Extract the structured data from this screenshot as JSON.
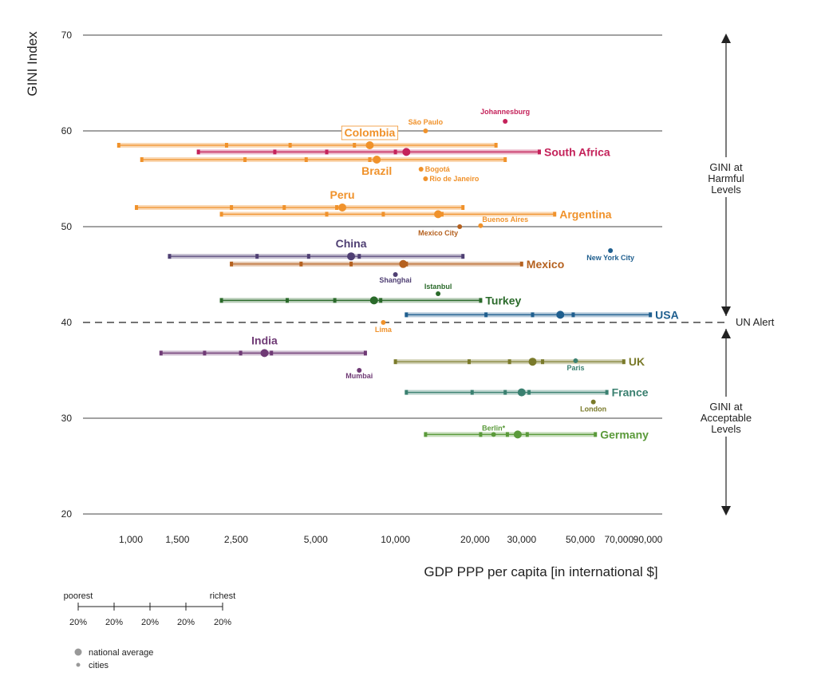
{
  "chart_data": {
    "type": "scatter",
    "ylabel": "GINI Index",
    "xlabel": "GDP PPP per capita [in international $]",
    "x_scale": "log",
    "xlim": [
      700,
      100000
    ],
    "ylim": [
      20,
      70
    ],
    "yticks": [
      20,
      30,
      40,
      50,
      60,
      70
    ],
    "xticks": [
      {
        "value": 1000,
        "label": "1,000"
      },
      {
        "value": 1500,
        "label": "1,500"
      },
      {
        "value": 2500,
        "label": "2,500"
      },
      {
        "value": 5000,
        "label": "5,000"
      },
      {
        "value": 10000,
        "label": "10,000"
      },
      {
        "value": 20000,
        "label": "20,000"
      },
      {
        "value": 30000,
        "label": "30,000"
      },
      {
        "value": 50000,
        "label": "50,000"
      },
      {
        "value": 70000,
        "label": "70,000"
      },
      {
        "value": 90000,
        "label": "90,000"
      }
    ],
    "reference_line": {
      "y": 40,
      "label": "UN Alert"
    },
    "side_annotations": [
      {
        "text": "GINI at\nHarmful\nLevels",
        "from": 70,
        "to": 40
      },
      {
        "text": "GINI at\nAcceptable\nLevels",
        "from": 40,
        "to": 20
      }
    ],
    "countries": [
      {
        "name": "Colombia",
        "color": "#f0922b",
        "gini": 58.5,
        "average": 8000,
        "quintiles": [
          900,
          2300,
          4000,
          7000,
          24000
        ],
        "label_side": "top",
        "boxed": true
      },
      {
        "name": "South Africa",
        "color": "#c4225a",
        "gini": 57.8,
        "average": 11000,
        "quintiles": [
          1800,
          3500,
          5500,
          10000,
          35000
        ],
        "label_side": "right"
      },
      {
        "name": "Brazil",
        "color": "#f0922b",
        "gini": 57.0,
        "average": 8500,
        "quintiles": [
          1100,
          2700,
          4600,
          8000,
          26000
        ],
        "label_side": "bottom"
      },
      {
        "name": "Peru",
        "color": "#f0922b",
        "gini": 52.0,
        "average": 6300,
        "quintiles": [
          1050,
          2400,
          3800,
          6000,
          18000
        ],
        "label_side": "top"
      },
      {
        "name": "Argentina",
        "color": "#f0922b",
        "gini": 51.3,
        "average": 14500,
        "quintiles": [
          2200,
          5500,
          9000,
          15000,
          40000
        ],
        "label_side": "right"
      },
      {
        "name": "China",
        "color": "#4f3f73",
        "gini": 46.9,
        "average": 6800,
        "quintiles": [
          1400,
          3000,
          4700,
          7300,
          18000
        ],
        "label_side": "top"
      },
      {
        "name": "Mexico",
        "color": "#b5611f",
        "gini": 46.1,
        "average": 10700,
        "quintiles": [
          2400,
          4400,
          6800,
          11000,
          30000
        ],
        "label_side": "right"
      },
      {
        "name": "Turkey",
        "color": "#2a6a2a",
        "gini": 42.3,
        "average": 8300,
        "quintiles": [
          2200,
          3900,
          5900,
          8800,
          21000
        ],
        "label_side": "right"
      },
      {
        "name": "USA",
        "color": "#1f5f8f",
        "gini": 40.8,
        "average": 42000,
        "quintiles": [
          11000,
          22000,
          33000,
          47000,
          92000
        ],
        "label_side": "right"
      },
      {
        "name": "India",
        "color": "#6f3a75",
        "gini": 36.8,
        "average": 3200,
        "quintiles": [
          1300,
          1900,
          2600,
          3400,
          7700
        ],
        "label_side": "top"
      },
      {
        "name": "UK",
        "color": "#7a7a2a",
        "gini": 35.9,
        "average": 33000,
        "quintiles": [
          10000,
          19000,
          27000,
          36000,
          73000
        ],
        "label_side": "right"
      },
      {
        "name": "France",
        "color": "#3a8070",
        "gini": 32.7,
        "average": 30000,
        "quintiles": [
          11000,
          19500,
          26000,
          32000,
          63000
        ],
        "label_side": "right"
      },
      {
        "name": "Germany",
        "color": "#5a9a3a",
        "gini": 28.3,
        "average": 29000,
        "quintiles": [
          13000,
          21000,
          26500,
          31500,
          57000
        ],
        "label_side": "right"
      }
    ],
    "cities": [
      {
        "name": "Johannesburg",
        "color": "#c4225a",
        "gini": 61.0,
        "gdp": 26000,
        "label_dx": 0,
        "label_dy": -9,
        "anchor": "middle"
      },
      {
        "name": "São Paulo",
        "color": "#f0922b",
        "gini": 60.0,
        "gdp": 13000,
        "label_dx": 0,
        "label_dy": -8,
        "anchor": "middle"
      },
      {
        "name": "Bogotá",
        "color": "#f0922b",
        "gini": 56.0,
        "gdp": 12500,
        "label_dx": 5,
        "label_dy": 3,
        "anchor": "start"
      },
      {
        "name": "Rio de Janeiro",
        "color": "#f0922b",
        "gini": 55.0,
        "gdp": 13000,
        "label_dx": 5,
        "label_dy": 3,
        "anchor": "start"
      },
      {
        "name": "Buenos Aires",
        "color": "#f0922b",
        "gini": 50.1,
        "gdp": 21000,
        "label_dx": 2,
        "label_dy": -5,
        "anchor": "start"
      },
      {
        "name": "Mexico City",
        "color": "#b5611f",
        "gini": 50.0,
        "gdp": 17500,
        "label_dx": -2,
        "label_dy": 11,
        "anchor": "end"
      },
      {
        "name": "New York City",
        "color": "#1f5f8f",
        "gini": 47.5,
        "gdp": 65000,
        "label_dx": 0,
        "label_dy": 12,
        "anchor": "middle"
      },
      {
        "name": "Shanghai",
        "color": "#4f3f73",
        "gini": 45.0,
        "gdp": 10000,
        "label_dx": 0,
        "label_dy": 10,
        "anchor": "middle"
      },
      {
        "name": "Istanbul",
        "color": "#2a6a2a",
        "gini": 43.0,
        "gdp": 14500,
        "label_dx": 0,
        "label_dy": -6,
        "anchor": "middle"
      },
      {
        "name": "Lima",
        "color": "#f0922b",
        "gini": 40.0,
        "gdp": 9000,
        "label_dx": 0,
        "label_dy": 12,
        "anchor": "middle"
      },
      {
        "name": "Mumbai",
        "color": "#6f3a75",
        "gini": 35.0,
        "gdp": 7300,
        "label_dx": 0,
        "label_dy": 10,
        "anchor": "middle"
      },
      {
        "name": "Paris",
        "color": "#3a8070",
        "gini": 36.0,
        "gdp": 48000,
        "label_dx": 0,
        "label_dy": 12,
        "anchor": "middle"
      },
      {
        "name": "London",
        "color": "#7a7a2a",
        "gini": 31.7,
        "gdp": 56000,
        "label_dx": 0,
        "label_dy": 12,
        "anchor": "middle"
      },
      {
        "name": "Berlin*",
        "color": "#5a9a3a",
        "gini": 28.3,
        "gdp": 23500,
        "label_dx": 0,
        "label_dy": -5,
        "anchor": "middle"
      }
    ]
  },
  "legend": {
    "poorest": "poorest",
    "richest": "richest",
    "quintile_labels": [
      "20%",
      "20%",
      "20%",
      "20%",
      "20%"
    ],
    "national_average": "national average",
    "cities": "cities",
    "marker_color": "#999999"
  }
}
